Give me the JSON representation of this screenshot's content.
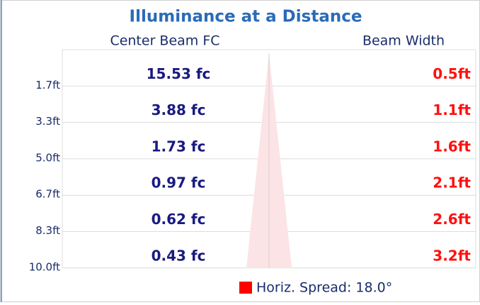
{
  "title": "Illuminance at a Distance",
  "columns": [
    "Center Beam FC",
    "Beam Width"
  ],
  "rows": [
    {
      "distance": "1.7ft",
      "fc": "15.53 fc",
      "beam": "0.5ft"
    },
    {
      "distance": "3.3ft",
      "fc": "3.88 fc",
      "beam": "1.1ft"
    },
    {
      "distance": "5.0ft",
      "fc": "1.73 fc",
      "beam": "1.6ft"
    },
    {
      "distance": "6.7ft",
      "fc": "0.97 fc",
      "beam": "2.1ft"
    },
    {
      "distance": "8.3ft",
      "fc": "0.62 fc",
      "beam": "2.6ft"
    },
    {
      "distance": "10.0ft",
      "fc": "0.43 fc",
      "beam": "3.2ft"
    }
  ],
  "legend": "Horiz. Spread: 18.0°"
}
